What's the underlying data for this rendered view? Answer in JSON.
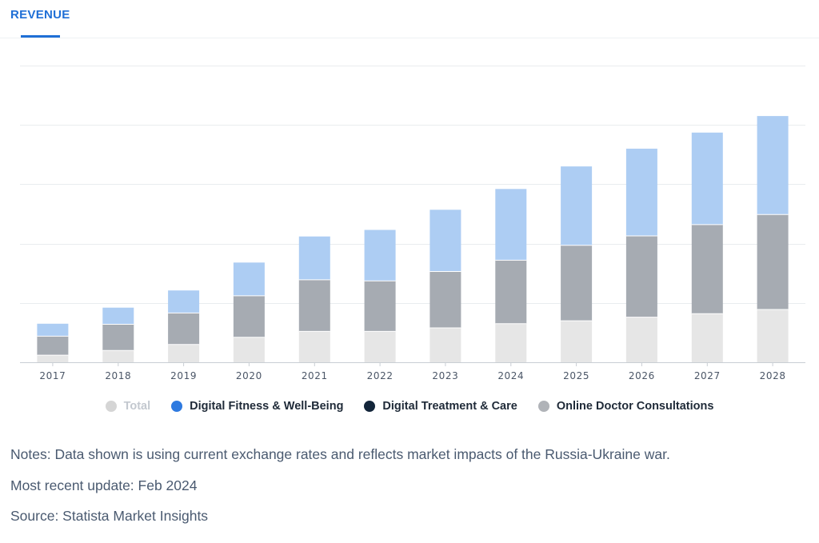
{
  "tab": {
    "label": "REVENUE"
  },
  "chart_data": {
    "type": "bar",
    "stacked": true,
    "categories": [
      "2017",
      "2018",
      "2019",
      "2020",
      "2021",
      "2022",
      "2023",
      "2024",
      "2025",
      "2026",
      "2027",
      "2028"
    ],
    "ylim": [
      0,
      5
    ],
    "y_gridlines": [
      1,
      2,
      3,
      4,
      5
    ],
    "series": [
      {
        "name": "Total",
        "color": "#e6e6e6",
        "values": [
          0.12,
          0.2,
          0.3,
          0.42,
          0.52,
          0.52,
          0.58,
          0.65,
          0.7,
          0.76,
          0.82,
          0.89
        ]
      },
      {
        "name": "Online Doctor Consultations",
        "color": "#a6abb2",
        "values": [
          0.32,
          0.44,
          0.53,
          0.7,
          0.87,
          0.85,
          0.95,
          1.07,
          1.27,
          1.37,
          1.5,
          1.6
        ]
      },
      {
        "name": "Digital Fitness & Well-Being",
        "color": "#adcdf3",
        "values": [
          0.21,
          0.28,
          0.38,
          0.56,
          0.73,
          0.86,
          1.04,
          1.2,
          1.33,
          1.47,
          1.55,
          1.66
        ]
      }
    ],
    "legend": [
      {
        "label": "Total",
        "color": "#d5d5d5",
        "state": "dim"
      },
      {
        "label": "Digital Fitness & Well-Being",
        "color": "#2e7ae0",
        "state": "active"
      },
      {
        "label": "Digital Treatment & Care",
        "color": "#13253a",
        "state": "active"
      },
      {
        "label": "Online Doctor Consultations",
        "color": "#b0b3b8",
        "state": "active"
      }
    ]
  },
  "notes": {
    "note": "Notes: Data shown is using current exchange rates and reflects market impacts of the Russia-Ukraine war.",
    "update": "Most recent update: Feb 2024",
    "source": "Source: Statista Market Insights"
  }
}
